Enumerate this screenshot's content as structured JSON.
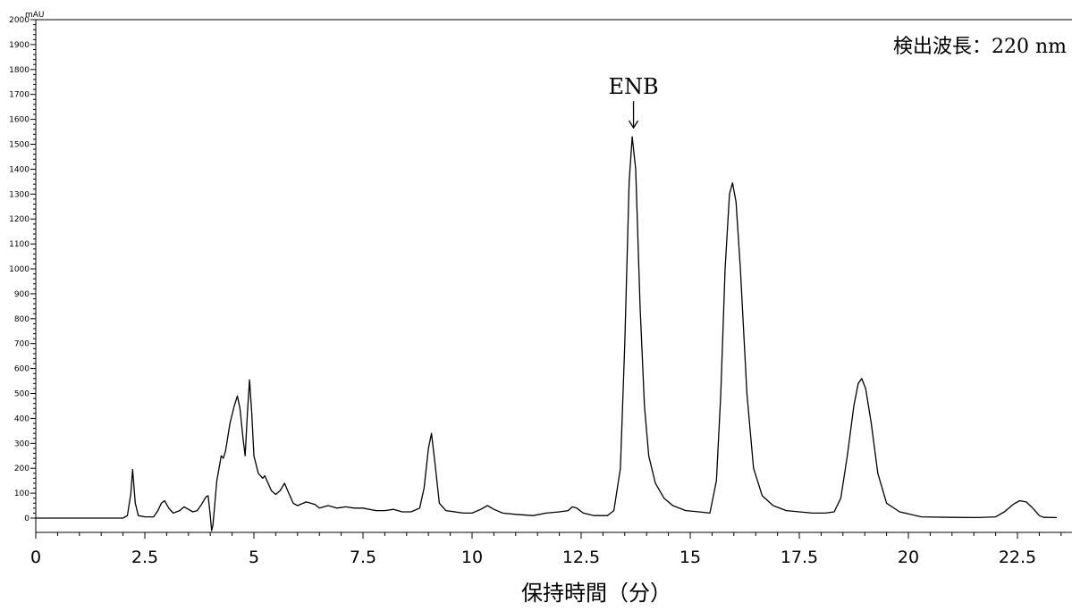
{
  "chart_data": {
    "type": "line",
    "title": "",
    "xlabel": "保持時間（分）",
    "ylabel": "",
    "y_unit": "mAU",
    "xlim": [
      0,
      23.5
    ],
    "ylim": [
      -50,
      2000
    ],
    "x_ticks": [
      "0",
      "2.5",
      "5",
      "7.5",
      "10",
      "12.5",
      "15",
      "17.5",
      "20",
      "22.5"
    ],
    "y_ticks": [
      "0",
      "100",
      "200",
      "300",
      "400",
      "500",
      "600",
      "700",
      "800",
      "900",
      "1000",
      "1100",
      "1200",
      "1300",
      "1400",
      "1500",
      "1600",
      "1700",
      "1800",
      "1900",
      "2000"
    ],
    "annotations": [
      {
        "text": "検出波長：220 nm"
      },
      {
        "text": "ENB",
        "x": 13.7,
        "y": 1530
      }
    ],
    "grid": false,
    "series": [
      {
        "name": "",
        "color": "#000000",
        "points": [
          [
            0,
            0
          ],
          [
            2.0,
            0
          ],
          [
            2.1,
            10
          ],
          [
            2.18,
            100
          ],
          [
            2.22,
            195
          ],
          [
            2.28,
            60
          ],
          [
            2.35,
            10
          ],
          [
            2.5,
            5
          ],
          [
            2.7,
            5
          ],
          [
            2.8,
            30
          ],
          [
            2.88,
            60
          ],
          [
            2.95,
            70
          ],
          [
            3.05,
            40
          ],
          [
            3.15,
            20
          ],
          [
            3.3,
            30
          ],
          [
            3.4,
            45
          ],
          [
            3.5,
            35
          ],
          [
            3.6,
            25
          ],
          [
            3.7,
            30
          ],
          [
            3.8,
            55
          ],
          [
            3.9,
            85
          ],
          [
            3.95,
            90
          ],
          [
            4.0,
            10
          ],
          [
            4.03,
            -50
          ],
          [
            4.06,
            -30
          ],
          [
            4.1,
            50
          ],
          [
            4.15,
            150
          ],
          [
            4.2,
            200
          ],
          [
            4.25,
            250
          ],
          [
            4.3,
            240
          ],
          [
            4.35,
            270
          ],
          [
            4.45,
            380
          ],
          [
            4.55,
            450
          ],
          [
            4.62,
            490
          ],
          [
            4.68,
            440
          ],
          [
            4.75,
            320
          ],
          [
            4.8,
            250
          ],
          [
            4.85,
            420
          ],
          [
            4.9,
            555
          ],
          [
            4.95,
            420
          ],
          [
            5.0,
            250
          ],
          [
            5.1,
            180
          ],
          [
            5.2,
            160
          ],
          [
            5.25,
            170
          ],
          [
            5.3,
            150
          ],
          [
            5.4,
            110
          ],
          [
            5.5,
            95
          ],
          [
            5.6,
            110
          ],
          [
            5.7,
            140
          ],
          [
            5.8,
            100
          ],
          [
            5.9,
            60
          ],
          [
            6.0,
            50
          ],
          [
            6.2,
            65
          ],
          [
            6.4,
            55
          ],
          [
            6.5,
            40
          ],
          [
            6.7,
            50
          ],
          [
            6.9,
            40
          ],
          [
            7.1,
            45
          ],
          [
            7.3,
            40
          ],
          [
            7.5,
            40
          ],
          [
            7.8,
            30
          ],
          [
            8.0,
            30
          ],
          [
            8.2,
            35
          ],
          [
            8.4,
            25
          ],
          [
            8.6,
            25
          ],
          [
            8.8,
            40
          ],
          [
            8.9,
            120
          ],
          [
            9.0,
            280
          ],
          [
            9.07,
            340
          ],
          [
            9.15,
            220
          ],
          [
            9.25,
            60
          ],
          [
            9.4,
            30
          ],
          [
            9.8,
            20
          ],
          [
            10.0,
            20
          ],
          [
            10.2,
            35
          ],
          [
            10.35,
            50
          ],
          [
            10.5,
            35
          ],
          [
            10.7,
            20
          ],
          [
            11.0,
            15
          ],
          [
            11.4,
            10
          ],
          [
            11.7,
            20
          ],
          [
            12.0,
            25
          ],
          [
            12.2,
            30
          ],
          [
            12.3,
            45
          ],
          [
            12.4,
            40
          ],
          [
            12.55,
            20
          ],
          [
            12.8,
            10
          ],
          [
            13.1,
            10
          ],
          [
            13.25,
            30
          ],
          [
            13.4,
            200
          ],
          [
            13.5,
            700
          ],
          [
            13.6,
            1350
          ],
          [
            13.67,
            1530
          ],
          [
            13.75,
            1400
          ],
          [
            13.85,
            850
          ],
          [
            13.95,
            450
          ],
          [
            14.05,
            250
          ],
          [
            14.2,
            140
          ],
          [
            14.4,
            80
          ],
          [
            14.6,
            50
          ],
          [
            14.9,
            30
          ],
          [
            15.2,
            25
          ],
          [
            15.45,
            20
          ],
          [
            15.6,
            150
          ],
          [
            15.7,
            500
          ],
          [
            15.8,
            1000
          ],
          [
            15.9,
            1300
          ],
          [
            15.97,
            1345
          ],
          [
            16.05,
            1270
          ],
          [
            16.15,
            1000
          ],
          [
            16.3,
            500
          ],
          [
            16.45,
            200
          ],
          [
            16.65,
            90
          ],
          [
            16.9,
            50
          ],
          [
            17.2,
            30
          ],
          [
            17.5,
            25
          ],
          [
            17.8,
            20
          ],
          [
            18.1,
            20
          ],
          [
            18.3,
            25
          ],
          [
            18.45,
            80
          ],
          [
            18.6,
            250
          ],
          [
            18.75,
            450
          ],
          [
            18.85,
            540
          ],
          [
            18.93,
            560
          ],
          [
            19.02,
            520
          ],
          [
            19.15,
            380
          ],
          [
            19.3,
            180
          ],
          [
            19.5,
            60
          ],
          [
            19.8,
            25
          ],
          [
            20.3,
            5
          ],
          [
            21.0,
            3
          ],
          [
            21.6,
            2
          ],
          [
            22.0,
            5
          ],
          [
            22.2,
            25
          ],
          [
            22.4,
            55
          ],
          [
            22.55,
            70
          ],
          [
            22.7,
            65
          ],
          [
            22.85,
            40
          ],
          [
            23.0,
            10
          ],
          [
            23.1,
            3
          ],
          [
            23.4,
            2
          ]
        ]
      }
    ]
  }
}
